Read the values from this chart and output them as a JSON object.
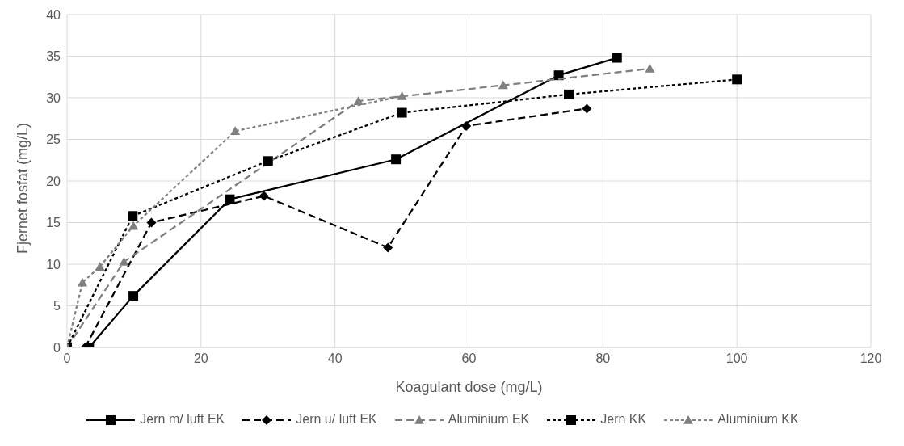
{
  "chart_data": {
    "type": "line",
    "xlabel": "Koagulant dose (mg/L)",
    "ylabel": "Fjernet fosfat (mg/L)",
    "xlim": [
      0,
      120
    ],
    "xticks": [
      0,
      20,
      40,
      60,
      80,
      100,
      120
    ],
    "ylim": [
      0,
      40
    ],
    "yticks": [
      0,
      5,
      10,
      15,
      20,
      25,
      30,
      35,
      40
    ],
    "grid": true,
    "legend": "bottom",
    "series": [
      {
        "name": "Jern m/ luft EK",
        "color": "#000000",
        "marker": "square",
        "line_style": "solid",
        "x": [
          0,
          3.3,
          9.9,
          24.3,
          49.1,
          73.4,
          82.1
        ],
        "values": [
          0,
          0,
          6.2,
          17.8,
          22.6,
          32.7,
          34.8
        ]
      },
      {
        "name": "Jern u/ luft EK",
        "color": "#000000",
        "marker": "diamond",
        "line_style": "dashed",
        "x": [
          2.7,
          12.6,
          29.4,
          47.9,
          59.6,
          77.6
        ],
        "values": [
          0,
          15.0,
          18.2,
          12.0,
          26.6,
          28.7
        ]
      },
      {
        "name": "Aluminium EK",
        "color": "#808080",
        "marker": "triangle",
        "line_style": "dashed",
        "x": [
          0,
          8.5,
          43.5,
          65.1,
          87.0
        ],
        "values": [
          0,
          10.3,
          29.6,
          31.5,
          33.5
        ]
      },
      {
        "name": "Jern KK",
        "color": "#000000",
        "marker": "square",
        "line_style": "dotted",
        "x": [
          0,
          9.8,
          30,
          50,
          74.9,
          100
        ],
        "values": [
          0,
          15.8,
          22.4,
          28.2,
          30.4,
          32.2
        ]
      },
      {
        "name": "Aluminium KK",
        "color": "#808080",
        "marker": "triangle",
        "line_style": "dotted",
        "x": [
          0,
          2.3,
          4.9,
          9.9,
          25.1,
          50.0
        ],
        "values": [
          0,
          7.8,
          9.7,
          14.6,
          26.0,
          30.2
        ]
      }
    ]
  }
}
